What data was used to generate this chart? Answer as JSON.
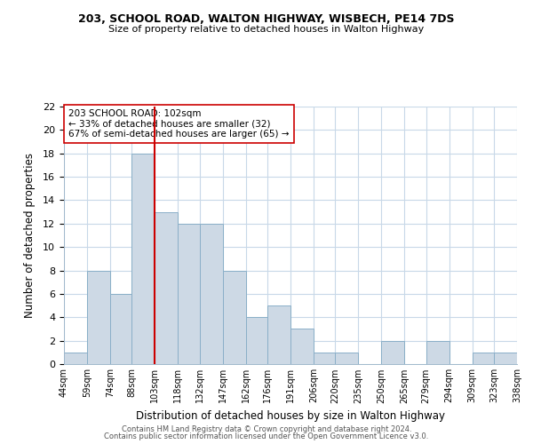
{
  "title": "203, SCHOOL ROAD, WALTON HIGHWAY, WISBECH, PE14 7DS",
  "subtitle": "Size of property relative to detached houses in Walton Highway",
  "xlabel": "Distribution of detached houses by size in Walton Highway",
  "ylabel": "Number of detached properties",
  "bar_color": "#cdd9e5",
  "bar_edgecolor": "#8aafc8",
  "reference_line_x": 103,
  "reference_line_color": "#cc0000",
  "bins": [
    44,
    59,
    74,
    88,
    103,
    118,
    132,
    147,
    162,
    176,
    191,
    206,
    220,
    235,
    250,
    265,
    279,
    294,
    309,
    323,
    338
  ],
  "bin_labels": [
    "44sqm",
    "59sqm",
    "74sqm",
    "88sqm",
    "103sqm",
    "118sqm",
    "132sqm",
    "147sqm",
    "162sqm",
    "176sqm",
    "191sqm",
    "206sqm",
    "220sqm",
    "235sqm",
    "250sqm",
    "265sqm",
    "279sqm",
    "294sqm",
    "309sqm",
    "323sqm",
    "338sqm"
  ],
  "counts": [
    1,
    8,
    6,
    18,
    13,
    12,
    12,
    8,
    4,
    5,
    3,
    1,
    1,
    0,
    2,
    0,
    2,
    0,
    1,
    1
  ],
  "ylim": [
    0,
    22
  ],
  "yticks": [
    0,
    2,
    4,
    6,
    8,
    10,
    12,
    14,
    16,
    18,
    20,
    22
  ],
  "annotation_title": "203 SCHOOL ROAD: 102sqm",
  "annotation_line1": "← 33% of detached houses are smaller (32)",
  "annotation_line2": "67% of semi-detached houses are larger (65) →",
  "footer1": "Contains HM Land Registry data © Crown copyright and database right 2024.",
  "footer2": "Contains public sector information licensed under the Open Government Licence v3.0.",
  "background_color": "#ffffff",
  "grid_color": "#c8d8e8"
}
